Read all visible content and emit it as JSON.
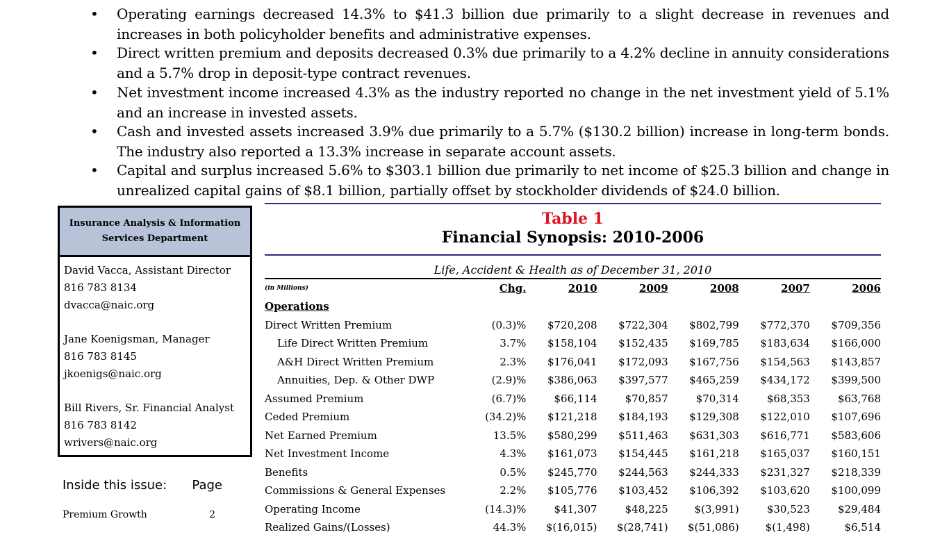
{
  "bullets": [
    "Operating earnings decreased 14.3% to $41.3 billion due primarily to a slight decrease in revenues and increases in both policyholder benefits and administrative expenses.",
    "Direct written premium and deposits decreased 0.3% due primarily to a 4.2% decline in annuity considerations and a 5.7% drop in deposit-type contract revenues.",
    "Net investment income increased 4.3% as the industry reported no change in the net investment yield of 5.1% and an increase in invested assets.",
    "Cash and invested assets increased 3.9% due primarily to a 5.7% ($130.2 billion) increase in long-term bonds. The industry also reported a 13.3% increase in separate account assets.",
    "Capital and surplus increased 5.6% to $303.1 billion due primarily to net income of $25.3 billion and change in unrealized capital gains of $8.1 billion, partially offset by stockholder dividends of $24.0 billion."
  ],
  "infobox": {
    "header": "Insurance Analysis & Information Services Department",
    "contacts": [
      {
        "name": "David Vacca, Assistant Director",
        "phone": "816 783 8134",
        "email": "dvacca@naic.org"
      },
      {
        "name": "Jane Koenigsman, Manager",
        "phone": "816 783 8145",
        "email": "jkoenigs@naic.org"
      },
      {
        "name": "Bill Rivers, Sr. Financial Analyst",
        "phone": "816 783 8142",
        "email": "wrivers@naic.org"
      }
    ]
  },
  "toc": {
    "heading": "Inside this issue:",
    "page_label": "Page",
    "items": [
      {
        "label": "Premium Growth",
        "page": "2"
      }
    ]
  },
  "table": {
    "title": "Table 1",
    "subtitle": "Financial Synopsis: 2010-2006",
    "caption": "Life, Accident & Health as of December 31, 2010",
    "units": "(in Millions)",
    "headers": [
      "Chg.",
      "2010",
      "2009",
      "2008",
      "2007",
      "2006"
    ],
    "section": "Operations",
    "rows": [
      {
        "label": "Direct Written Premium",
        "indent": false,
        "values": [
          "(0.3)%",
          "$720,208",
          "$722,304",
          "$802,799",
          "$772,370",
          "$709,356"
        ]
      },
      {
        "label": "Life Direct Written Premium",
        "indent": true,
        "values": [
          "3.7%",
          "$158,104",
          "$152,435",
          "$169,785",
          "$183,634",
          "$166,000"
        ]
      },
      {
        "label": "A&H Direct Written Premium",
        "indent": true,
        "values": [
          "2.3%",
          "$176,041",
          "$172,093",
          "$167,756",
          "$154,563",
          "$143,857"
        ]
      },
      {
        "label": "Annuities, Dep. & Other DWP",
        "indent": true,
        "values": [
          "(2.9)%",
          "$386,063",
          "$397,577",
          "$465,259",
          "$434,172",
          "$399,500"
        ]
      },
      {
        "label": "Assumed Premium",
        "indent": false,
        "values": [
          "(6.7)%",
          "$66,114",
          "$70,857",
          "$70,314",
          "$68,353",
          "$63,768"
        ]
      },
      {
        "label": "Ceded Premium",
        "indent": false,
        "values": [
          "(34.2)%",
          "$121,218",
          "$184,193",
          "$129,308",
          "$122,010",
          "$107,696"
        ]
      },
      {
        "label": "Net Earned Premium",
        "indent": false,
        "values": [
          "13.5%",
          "$580,299",
          "$511,463",
          "$631,303",
          "$616,771",
          "$583,606"
        ]
      },
      {
        "label": "Net Investment Income",
        "indent": false,
        "values": [
          "4.3%",
          "$161,073",
          "$154,445",
          "$161,218",
          "$165,037",
          "$160,151"
        ]
      },
      {
        "label": "Benefits",
        "indent": false,
        "values": [
          "0.5%",
          "$245,770",
          "$244,563",
          "$244,333",
          "$231,327",
          "$218,339"
        ]
      },
      {
        "label": "Commissions & General Expenses",
        "indent": false,
        "values": [
          "2.2%",
          "$105,776",
          "$103,452",
          "$106,392",
          "$103,620",
          "$100,099"
        ]
      },
      {
        "label": "Operating Income",
        "indent": false,
        "values": [
          "(14.3)%",
          "$41,307",
          "$48,225",
          "$(3,991)",
          "$30,523",
          "$29,484"
        ]
      },
      {
        "label": "Realized Gains/(Losses)",
        "indent": false,
        "values": [
          "44.3%",
          "$(16,015)",
          "$(28,741)",
          "$(51,086)",
          "$(1,498)",
          "$6,514"
        ]
      }
    ]
  }
}
